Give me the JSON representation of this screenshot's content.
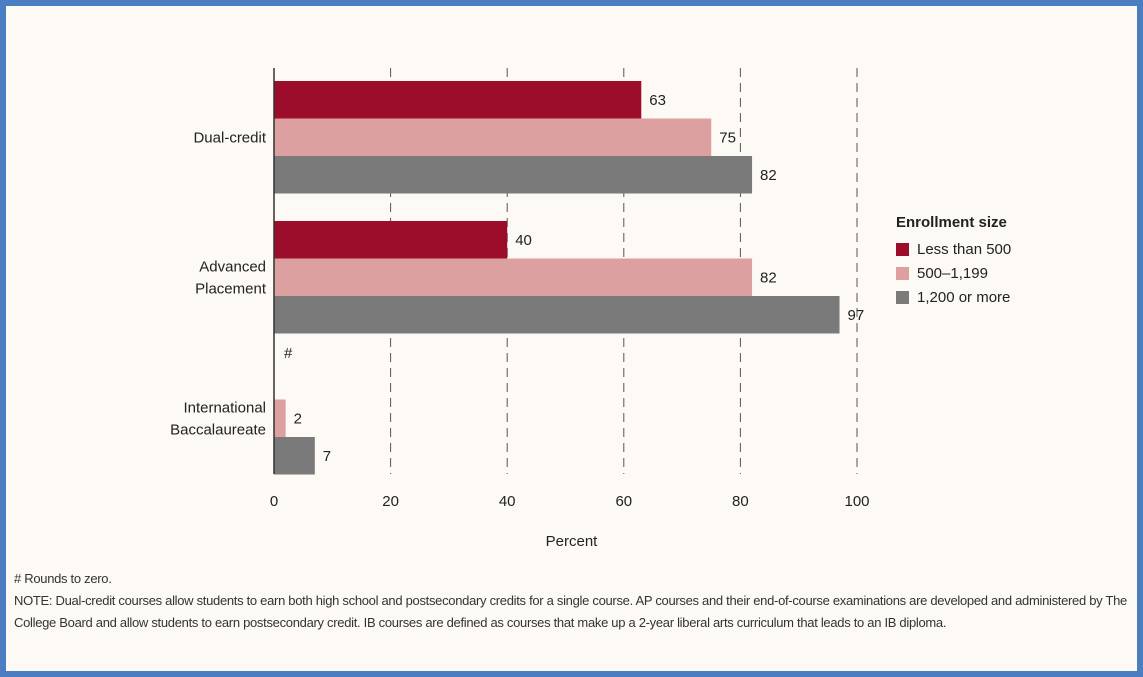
{
  "chart_data": {
    "type": "bar",
    "orientation": "horizontal",
    "categories": [
      "Dual-credit",
      "Advanced Placement",
      "International Baccalaureate"
    ],
    "series": [
      {
        "name": "Less than 500",
        "color": "#9b0d2a",
        "values": [
          63,
          40,
          0
        ],
        "labels": [
          "63",
          "40",
          "#"
        ]
      },
      {
        "name": "500–1,199",
        "color": "#dca0a0",
        "values": [
          75,
          82,
          2
        ],
        "labels": [
          "75",
          "82",
          "2"
        ]
      },
      {
        "name": "1,200 or more",
        "color": "#7a7a7a",
        "values": [
          82,
          97,
          7
        ],
        "labels": [
          "82",
          "97",
          "7"
        ]
      }
    ],
    "xlabel": "Percent",
    "xlim": [
      0,
      100
    ],
    "xticks": [
      0,
      20,
      40,
      60,
      80,
      100
    ],
    "grid": "vertical dashed",
    "legend_title": "Enrollment size",
    "legend_position": "right"
  },
  "notes": {
    "footnote": "# Rounds to zero.",
    "note": "NOTE: Dual-credit courses allow students to earn both high school and postsecondary credits for a single course. AP courses and their end-of-course examinations are developed and administered by The College Board and allow students to earn postsecondary credit. IB courses are defined as courses that make up a 2-year liberal arts curriculum that leads to an IB diploma."
  }
}
